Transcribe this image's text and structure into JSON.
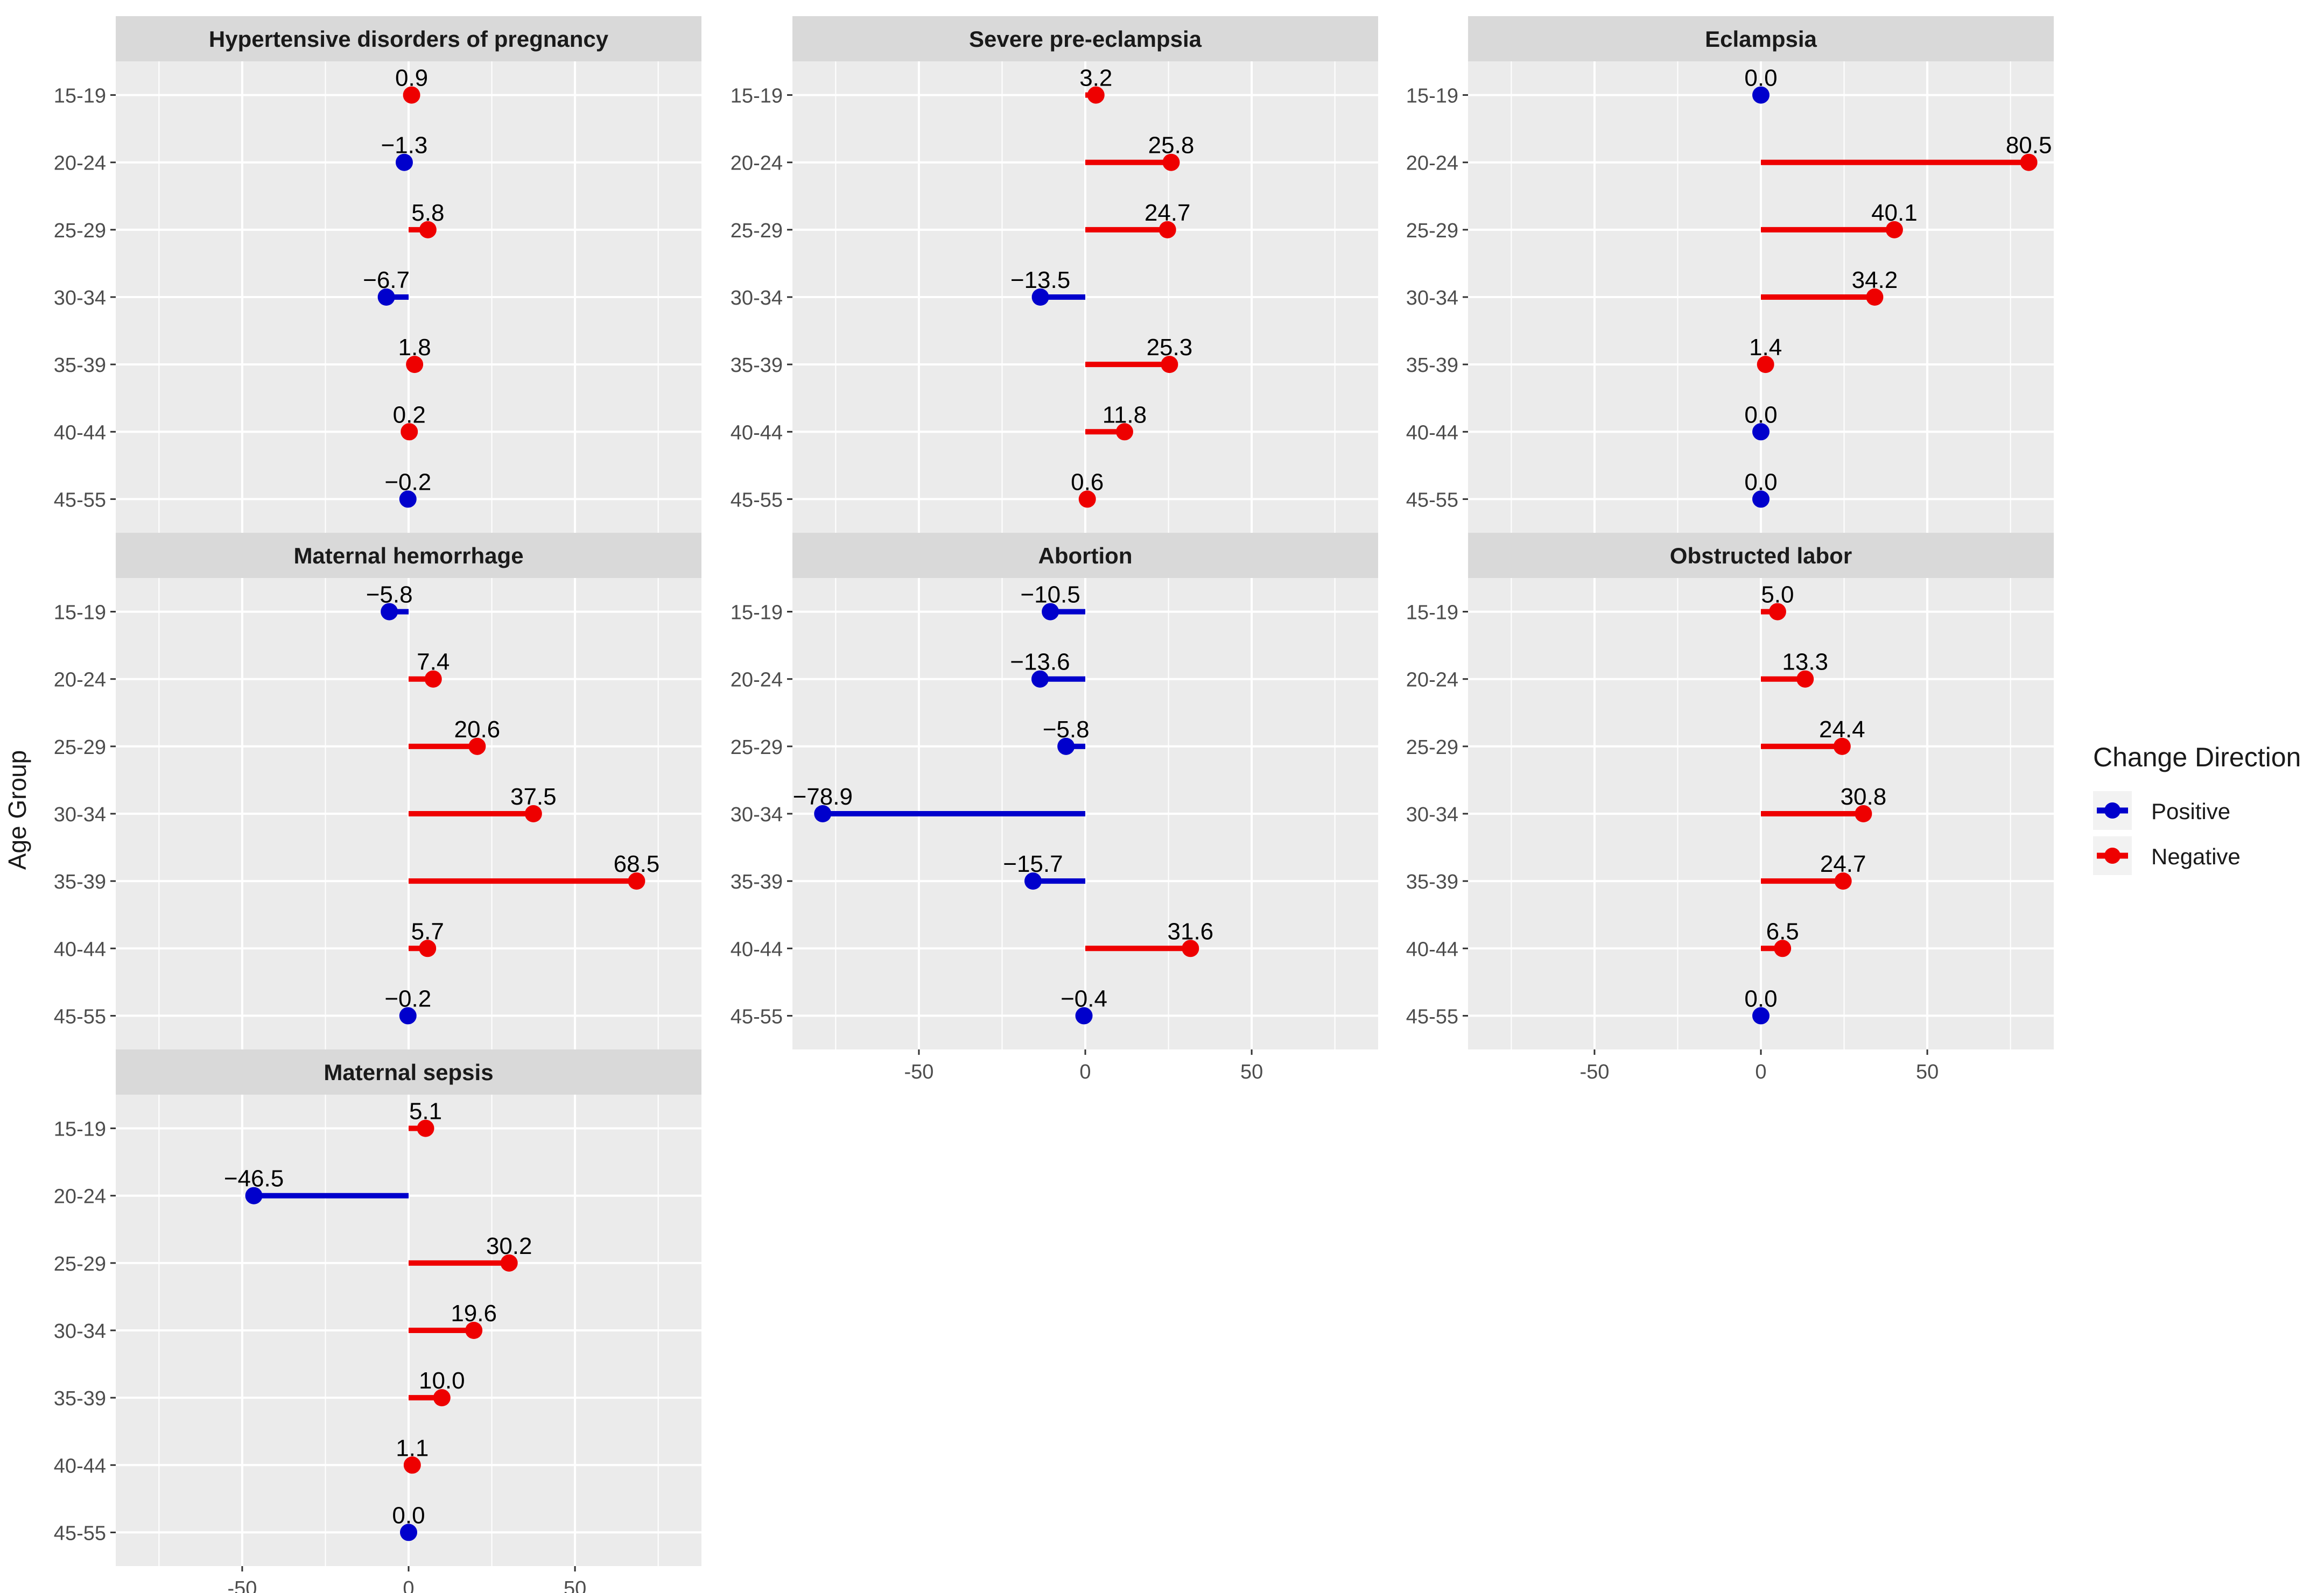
{
  "chart_data": {
    "type": "lollipop",
    "ylabel": "Age Group",
    "xlim": [
      -88,
      88
    ],
    "x_ticks": [
      -50,
      0,
      50
    ],
    "x_tick_labels": [
      "-50",
      "0",
      "50"
    ],
    "age_groups": [
      "15-19",
      "20-24",
      "25-29",
      "30-34",
      "35-39",
      "40-44",
      "45-55"
    ],
    "legend": {
      "title": "Change Direction",
      "entries": [
        {
          "label": "Positive",
          "color": "#0000CC"
        },
        {
          "label": "Negative",
          "color": "#EE0000"
        }
      ]
    },
    "colors": {
      "positive": "#0000CC",
      "negative": "#EE0000",
      "panel_bg": "#EBEBEB",
      "strip_bg": "#D9D9D9",
      "grid": "#FFFFFF",
      "text": "#1A1A1A",
      "tick_text": "#4D4D4D"
    },
    "panels": [
      {
        "title": "Hypertensive disorders of pregnancy",
        "values": [
          0.9,
          -1.3,
          5.8,
          -6.7,
          1.8,
          0.2,
          -0.2
        ],
        "labels": [
          "0.9",
          "−1.3",
          "5.8",
          "−6.7",
          "1.8",
          "0.2",
          "−0.2"
        ],
        "direction": [
          "Negative",
          "Positive",
          "Negative",
          "Positive",
          "Negative",
          "Negative",
          "Positive"
        ]
      },
      {
        "title": "Severe pre-eclampsia",
        "values": [
          3.2,
          25.8,
          24.7,
          -13.5,
          25.3,
          11.8,
          0.6
        ],
        "labels": [
          "3.2",
          "25.8",
          "24.7",
          "−13.5",
          "25.3",
          "11.8",
          "0.6"
        ],
        "direction": [
          "Negative",
          "Negative",
          "Negative",
          "Positive",
          "Negative",
          "Negative",
          "Negative"
        ]
      },
      {
        "title": "Eclampsia",
        "values": [
          0.0,
          80.5,
          40.1,
          34.2,
          1.4,
          0.0,
          0.0
        ],
        "labels": [
          "0.0",
          "80.5",
          "40.1",
          "34.2",
          "1.4",
          "0.0",
          "0.0"
        ],
        "direction": [
          "Positive",
          "Negative",
          "Negative",
          "Negative",
          "Negative",
          "Positive",
          "Positive"
        ]
      },
      {
        "title": "Maternal hemorrhage",
        "values": [
          -5.8,
          7.4,
          20.6,
          37.5,
          68.5,
          5.7,
          -0.2
        ],
        "labels": [
          "−5.8",
          "7.4",
          "20.6",
          "37.5",
          "68.5",
          "5.7",
          "−0.2"
        ],
        "direction": [
          "Positive",
          "Negative",
          "Negative",
          "Negative",
          "Negative",
          "Negative",
          "Positive"
        ]
      },
      {
        "title": "Abortion",
        "values": [
          -10.5,
          -13.6,
          -5.8,
          -78.9,
          -15.7,
          31.6,
          -0.4
        ],
        "labels": [
          "−10.5",
          "−13.6",
          "−5.8",
          "−78.9",
          "−15.7",
          "31.6",
          "−0.4"
        ],
        "direction": [
          "Positive",
          "Positive",
          "Positive",
          "Positive",
          "Positive",
          "Negative",
          "Positive"
        ]
      },
      {
        "title": "Obstructed labor",
        "values": [
          5.0,
          13.3,
          24.4,
          30.8,
          24.7,
          6.5,
          0.0
        ],
        "labels": [
          "5.0",
          "13.3",
          "24.4",
          "30.8",
          "24.7",
          "6.5",
          "0.0"
        ],
        "direction": [
          "Negative",
          "Negative",
          "Negative",
          "Negative",
          "Negative",
          "Negative",
          "Positive"
        ]
      },
      {
        "title": "Maternal sepsis",
        "values": [
          5.1,
          -46.5,
          30.2,
          19.6,
          10.0,
          1.1,
          0.0
        ],
        "labels": [
          "5.1",
          "−46.5",
          "30.2",
          "19.6",
          "10.0",
          "1.1",
          "0.0"
        ],
        "direction": [
          "Negative",
          "Positive",
          "Negative",
          "Negative",
          "Negative",
          "Negative",
          "Positive"
        ]
      }
    ]
  }
}
